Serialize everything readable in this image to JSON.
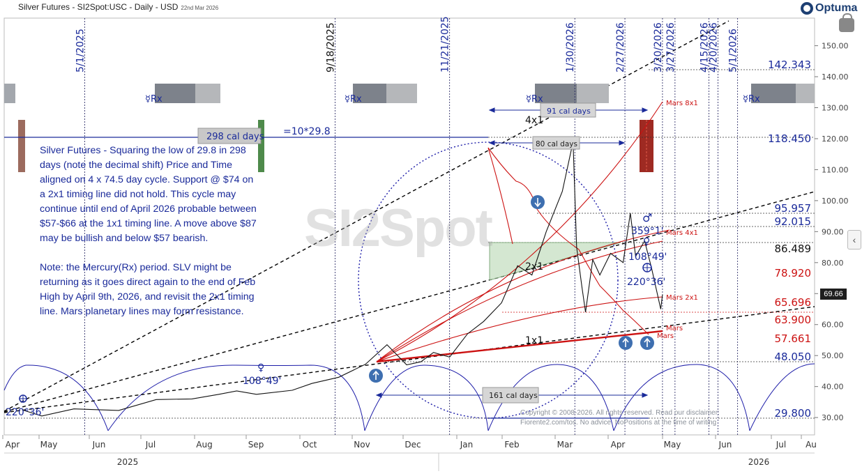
{
  "header": {
    "title": "Silver Futures - SI2Spot:USC - Daily - USD",
    "date": "22nd Mar 2026",
    "brand": "Optuma"
  },
  "watermark": "SI2Spot",
  "current_price": "69.66",
  "note": {
    "paragraph1": "Silver Futures - Squaring the low of 29.8 in 298 days (note the decimal shift) Price and Time aligned on 4 x 74.5 day cycle. Support @ $74 on a 2x1 timing line did not hold. This cycle may continue until end of April 2026 probable between $57-$66 at the 1x1 timing line. A move above $87 may be bullish and below $57 bearish.",
    "paragraph2": "Note: the Mercury(Rx) period. SLV might be returning as it goes direct again to the end of Feb High by April 9th, 2026, and revisit the 2x1 timing line. Mars planetary lines may form resistance."
  },
  "copyright": {
    "line1": "Copyright © 2008-2026. All rights reserved. Read our disclaimer:",
    "line2": "Fiorente2.com/tos. No advice. NoPositions at the time of writing"
  },
  "chart_data": {
    "type": "line",
    "title": "Silver Futures - SI2Spot:USC - Daily - USD",
    "ylim": [
      25,
      157
    ],
    "y_ticks": [
      30,
      40,
      50,
      60,
      70,
      80,
      90,
      100,
      110,
      120,
      130,
      140,
      150
    ],
    "y_tick_labels": [
      "30.00",
      "40.00",
      "50.00",
      "60.00",
      "70.00",
      "80.00",
      "90.00",
      "100.00",
      "110.00",
      "120.00",
      "130.00",
      "140.00",
      "150.00"
    ],
    "x_month_labels": [
      "Apr",
      "May",
      "Jun",
      "Jul",
      "Aug",
      "Sep",
      "Oct",
      "Nov",
      "Dec",
      "Jan",
      "Feb",
      "Mar",
      "Apr",
      "May",
      "Jun",
      "Jul",
      "Au"
    ],
    "x_years": [
      "2025",
      "2026"
    ],
    "series": [
      {
        "name": "Silver Futures",
        "points": [
          [
            "2025-03-27",
            32.5
          ],
          [
            "2025-04-07",
            30.5
          ],
          [
            "2025-04-25",
            32.8
          ],
          [
            "2025-05-20",
            32.3
          ],
          [
            "2025-06-10",
            35.8
          ],
          [
            "2025-06-30",
            36.0
          ],
          [
            "2025-07-15",
            37.5
          ],
          [
            "2025-07-25",
            38.6
          ],
          [
            "2025-08-05",
            37.5
          ],
          [
            "2025-08-25",
            38.8
          ],
          [
            "2025-09-05",
            41.0
          ],
          [
            "2025-09-20",
            43.0
          ],
          [
            "2025-10-05",
            47.2
          ],
          [
            "2025-10-17",
            53.5
          ],
          [
            "2025-10-28",
            47.0
          ],
          [
            "2025-11-05",
            48.0
          ],
          [
            "2025-11-12",
            51.0
          ],
          [
            "2025-11-21",
            49.5
          ],
          [
            "2025-12-01",
            57.0
          ],
          [
            "2025-12-10",
            61.0
          ],
          [
            "2025-12-20",
            67.0
          ],
          [
            "2025-12-29",
            79.0
          ],
          [
            "2026-01-06",
            76.0
          ],
          [
            "2026-01-14",
            90.0
          ],
          [
            "2026-01-23",
            103.0
          ],
          [
            "2026-01-29",
            119.0
          ],
          [
            "2026-01-31",
            85.0
          ],
          [
            "2026-02-03",
            72.0
          ],
          [
            "2026-02-05",
            64.0
          ],
          [
            "2026-02-09",
            81.0
          ],
          [
            "2026-02-13",
            76.0
          ],
          [
            "2026-02-19",
            83.0
          ],
          [
            "2026-02-26",
            80.0
          ],
          [
            "2026-03-02",
            96.0
          ],
          [
            "2026-03-05",
            82.0
          ],
          [
            "2026-03-10",
            87.0
          ],
          [
            "2026-03-14",
            78.0
          ],
          [
            "2026-03-19",
            65.0
          ],
          [
            "2026-03-20",
            69.66
          ]
        ]
      }
    ],
    "vertical_date_lines": [
      "5/1/2025",
      "9/18/2025",
      "11/21/2025",
      "1/30/2026",
      "2/27/2026",
      "3/20/2026",
      "3/27/2026",
      "4/15/2026",
      "4/20/2026",
      "5/1/2026"
    ],
    "horizontal_levels": [
      {
        "label": "142.343",
        "color": "#1a2a9a"
      },
      {
        "label": "118.450",
        "color": "#1a2a9a"
      },
      {
        "label": "95.957",
        "color": "#1a2a9a"
      },
      {
        "label": "92.015",
        "color": "#1a2a9a"
      },
      {
        "label": "86.489",
        "color": "#111111"
      },
      {
        "label": "78.920",
        "color": "#cc1111"
      },
      {
        "label": "65.696",
        "color": "#cc1111"
      },
      {
        "label": "63.900",
        "color": "#cc1111"
      },
      {
        "label": "57.661",
        "color": "#cc1111"
      },
      {
        "label": "48.050",
        "color": "#1a2a9a"
      },
      {
        "label": "29.800",
        "color": "#1a2a9a"
      }
    ],
    "annotations": {
      "cal_298": "298 cal days",
      "eq_10x": "=10*29.8",
      "cal_91": "91 cal days",
      "cal_80": "80 cal days",
      "cal_161": "161 cal days",
      "ratio_4x1": "4x1",
      "ratio_2x1": "2x1",
      "ratio_1x1": "1x1",
      "mars_8x1": "Mars 8x1",
      "mars_4x1": "Mars 4x1",
      "mars_2x1": "Mars 2x1",
      "mars_a": "Mars",
      "mars_b": "Mars",
      "deg_359": "359°1'",
      "deg_108": "108°49'",
      "deg_220": "220°36'",
      "deg_108_left": "108°49'",
      "deg_220_left": "220°36'",
      "mercury_rx": "☿Rx"
    },
    "colors": {
      "price": "#111111",
      "navy": "#1a2a9a",
      "red": "#cc1111",
      "triangle": "#c6dfc2"
    }
  }
}
